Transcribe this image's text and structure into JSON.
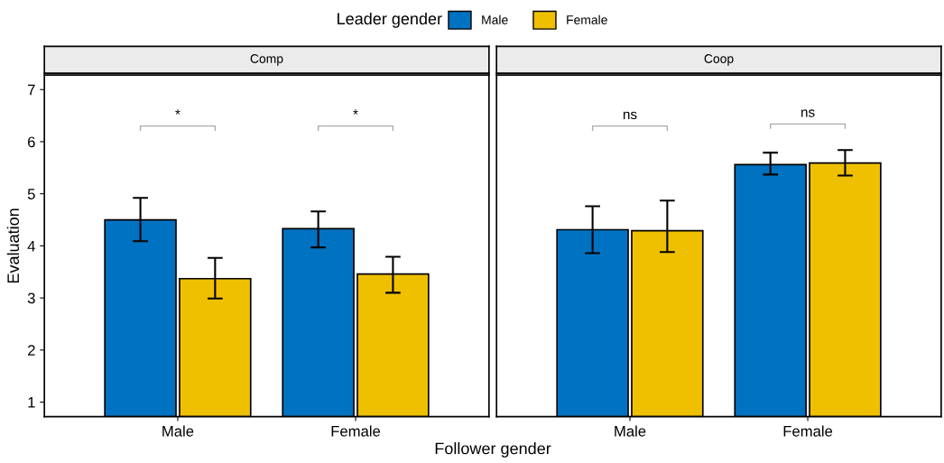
{
  "chart_data": [
    {
      "type": "bar",
      "title": "Comp",
      "xlabel": "Follower gender",
      "ylabel": "Evaluation",
      "legend_title": "Leader gender",
      "legend": "top",
      "categories": [
        "Male",
        "Female"
      ],
      "ylim": [
        0.72,
        7.28
      ],
      "yticks": [
        1,
        2,
        3,
        4,
        5,
        6,
        7
      ],
      "series": [
        {
          "name": "Male",
          "color": "#0072c2",
          "values": [
            4.5,
            4.33
          ],
          "errors": [
            [
              4.09,
              4.92
            ],
            [
              3.97,
              4.66
            ]
          ]
        },
        {
          "name": "Female",
          "color": "#efc000",
          "values": [
            3.37,
            3.46
          ],
          "errors": [
            [
              2.99,
              3.77
            ],
            [
              3.1,
              3.79
            ]
          ]
        }
      ],
      "annotations": [
        "*",
        "*"
      ]
    },
    {
      "type": "bar",
      "title": "Coop",
      "tick_labels": "x",
      "categories": [
        "Male",
        "Female"
      ],
      "ylim": [
        0.72,
        7.28
      ],
      "yticks": [
        1,
        2,
        3,
        4,
        5,
        6,
        7
      ],
      "series": [
        {
          "color": "#0072c2",
          "values": [
            4.31,
            5.56
          ],
          "errors": [
            [
              3.86,
              4.76
            ],
            [
              5.37,
              5.79
            ]
          ]
        },
        {
          "color": "#efc000",
          "values": [
            4.29,
            5.59
          ],
          "errors": [
            [
              3.88,
              4.87
            ],
            [
              5.35,
              5.84
            ]
          ]
        }
      ],
      "annotations": [
        "ns",
        "ns"
      ]
    }
  ]
}
